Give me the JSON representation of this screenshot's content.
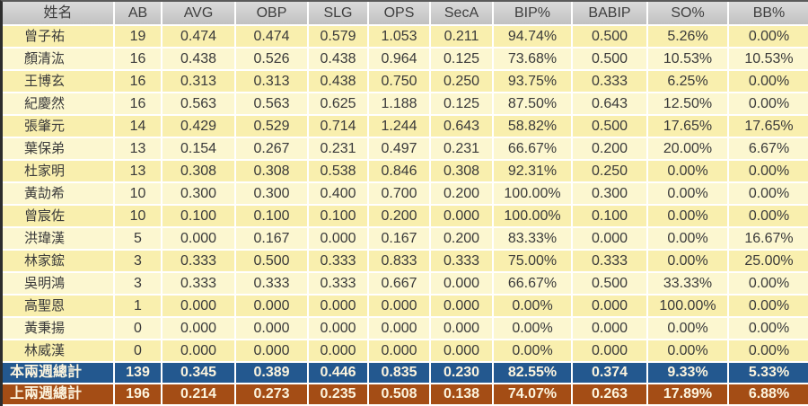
{
  "chart_data": {
    "type": "table",
    "columns": [
      "姓名",
      "AB",
      "AVG",
      "OBP",
      "SLG",
      "OPS",
      "SecA",
      "BIP%",
      "BABIP",
      "SO%",
      "BB%"
    ],
    "rows": [
      {
        "name": "曾子祐",
        "values": [
          "19",
          "0.474",
          "0.474",
          "0.579",
          "1.053",
          "0.211",
          "94.74%",
          "0.500",
          "5.26%",
          "0.00%"
        ]
      },
      {
        "name": "顏清汯",
        "values": [
          "16",
          "0.438",
          "0.526",
          "0.438",
          "0.964",
          "0.125",
          "73.68%",
          "0.500",
          "10.53%",
          "10.53%"
        ]
      },
      {
        "name": "王博玄",
        "values": [
          "16",
          "0.313",
          "0.313",
          "0.438",
          "0.750",
          "0.250",
          "93.75%",
          "0.333",
          "6.25%",
          "0.00%"
        ]
      },
      {
        "name": "紀慶然",
        "values": [
          "16",
          "0.563",
          "0.563",
          "0.625",
          "1.188",
          "0.125",
          "87.50%",
          "0.643",
          "12.50%",
          "0.00%"
        ]
      },
      {
        "name": "張肇元",
        "values": [
          "14",
          "0.429",
          "0.529",
          "0.714",
          "1.244",
          "0.643",
          "58.82%",
          "0.500",
          "17.65%",
          "17.65%"
        ]
      },
      {
        "name": "葉保弟",
        "values": [
          "13",
          "0.154",
          "0.267",
          "0.231",
          "0.497",
          "0.231",
          "66.67%",
          "0.200",
          "20.00%",
          "6.67%"
        ]
      },
      {
        "name": "杜家明",
        "values": [
          "13",
          "0.308",
          "0.308",
          "0.538",
          "0.846",
          "0.308",
          "92.31%",
          "0.250",
          "0.00%",
          "0.00%"
        ]
      },
      {
        "name": "黃劼希",
        "values": [
          "10",
          "0.300",
          "0.300",
          "0.400",
          "0.700",
          "0.200",
          "100.00%",
          "0.300",
          "0.00%",
          "0.00%"
        ]
      },
      {
        "name": "曾宸佐",
        "values": [
          "10",
          "0.100",
          "0.100",
          "0.100",
          "0.200",
          "0.000",
          "100.00%",
          "0.100",
          "0.00%",
          "0.00%"
        ]
      },
      {
        "name": "洪瑋漢",
        "values": [
          "5",
          "0.000",
          "0.167",
          "0.000",
          "0.167",
          "0.200",
          "83.33%",
          "0.000",
          "0.00%",
          "16.67%"
        ]
      },
      {
        "name": "林家鋐",
        "values": [
          "3",
          "0.333",
          "0.500",
          "0.333",
          "0.833",
          "0.333",
          "75.00%",
          "0.333",
          "0.00%",
          "25.00%"
        ]
      },
      {
        "name": "吳明鴻",
        "values": [
          "3",
          "0.333",
          "0.333",
          "0.333",
          "0.667",
          "0.000",
          "66.67%",
          "0.500",
          "33.33%",
          "0.00%"
        ]
      },
      {
        "name": "高聖恩",
        "values": [
          "1",
          "0.000",
          "0.000",
          "0.000",
          "0.000",
          "0.000",
          "0.00%",
          "0.000",
          "100.00%",
          "0.00%"
        ]
      },
      {
        "name": "黃秉揚",
        "values": [
          "0",
          "0.000",
          "0.000",
          "0.000",
          "0.000",
          "0.000",
          "0.00%",
          "0.000",
          "0.00%",
          "0.00%"
        ]
      },
      {
        "name": "林威漢",
        "values": [
          "0",
          "0.000",
          "0.000",
          "0.000",
          "0.000",
          "0.000",
          "0.00%",
          "0.000",
          "0.00%",
          "0.00%"
        ]
      }
    ],
    "summary": [
      {
        "name": "本兩週總計",
        "bg": "#23588F",
        "values": [
          "139",
          "0.345",
          "0.389",
          "0.446",
          "0.835",
          "0.230",
          "82.55%",
          "0.374",
          "9.33%",
          "5.33%"
        ]
      },
      {
        "name": "上兩週總計",
        "bg": "#A44D15",
        "values": [
          "196",
          "0.214",
          "0.273",
          "0.235",
          "0.508",
          "0.138",
          "74.07%",
          "0.263",
          "17.89%",
          "6.88%"
        ]
      }
    ]
  },
  "styles": {
    "row_odd": "#F9EFAE",
    "row_even": "#FCF7D0",
    "header_top": "#DBDBDB",
    "header_bottom": "#C1C1C1",
    "grid": "#FFFFFF",
    "text": "#3A3A3A",
    "header_text": "#3E3E3E",
    "summary_text": "#FCF4DE",
    "edge_left": "#2D2D2D",
    "edge_top": "#5A5A5A",
    "edge_bottom": "#EFE8CD"
  }
}
